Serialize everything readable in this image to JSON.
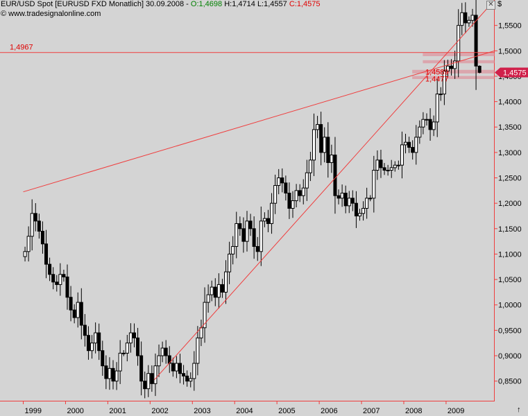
{
  "header": {
    "title": "EUR/USD Spot [EURUSD FXD  Monatlich] 30.09.2008 - ",
    "open": "O:1,4698",
    "high": "H:1,4714",
    "low": "L:1,4557",
    "close": "C:1,4575"
  },
  "copyright": "© www.tradesignalonline.com",
  "toolbar": {
    "close_glyph": "✕"
  },
  "axis": {
    "currency_symbol": "$",
    "scroll_glyph": "↑"
  },
  "colors": {
    "background": "#d4d4d4",
    "line": "#f03c3c",
    "candle_up": "#ffffff",
    "candle_down": "#000000"
  },
  "chart_data": {
    "type": "candlestick",
    "title": "EUR/USD Spot [EURUSD FXD  Monatlich] 30.09.2008",
    "ylim": [
      0.81,
      1.6
    ],
    "y_ticks": [
      "1,5500",
      "1,5000",
      "1,4500",
      "1,4000",
      "1,3500",
      "1,3000",
      "1,2500",
      "1,2000",
      "1,1500",
      "1,1000",
      "1,0500",
      "1,0000",
      "0,9500",
      "0,9000",
      "0,8500"
    ],
    "y_tick_values": [
      1.55,
      1.5,
      1.45,
      1.4,
      1.35,
      1.3,
      1.25,
      1.2,
      1.15,
      1.1,
      1.05,
      1.0,
      0.95,
      0.9,
      0.85
    ],
    "x_ticks": [
      "1999",
      "2000",
      "2001",
      "2002",
      "2003",
      "2004",
      "2005",
      "2006",
      "2007",
      "2008",
      "2009"
    ],
    "x_tick_years": [
      1999,
      2000,
      2001,
      2002,
      2003,
      2004,
      2005,
      2006,
      2007,
      2008,
      2009
    ],
    "x_range_years": [
      1998.45,
      2010.15
    ],
    "closes": [
      1.105,
      1.135,
      1.18,
      1.165,
      1.145,
      1.12,
      1.08,
      1.06,
      1.045,
      1.04,
      1.06,
      1.055,
      1.015,
      0.99,
      0.975,
      1.005,
      0.96,
      0.94,
      0.91,
      0.925,
      0.945,
      0.91,
      0.88,
      0.855,
      0.875,
      0.85,
      0.87,
      0.905,
      0.905,
      0.925,
      0.945,
      0.935,
      0.9,
      0.85,
      0.835,
      0.865,
      0.845,
      0.88,
      0.9,
      0.915,
      0.9,
      0.885,
      0.87,
      0.885,
      0.865,
      0.86,
      0.85,
      0.855,
      0.885,
      0.935,
      0.955,
      1.005,
      1.02,
      1.035,
      1.015,
      1.04,
      1.025,
      1.065,
      1.1,
      1.115,
      1.16,
      1.15,
      1.125,
      1.165,
      1.15,
      1.115,
      1.105,
      1.165,
      1.17,
      1.16,
      1.2,
      1.235,
      1.25,
      1.24,
      1.22,
      1.19,
      1.205,
      1.225,
      1.215,
      1.23,
      1.26,
      1.285,
      1.345,
      1.355,
      1.3,
      1.33,
      1.28,
      1.295,
      1.215,
      1.21,
      1.22,
      1.195,
      1.21,
      1.2,
      1.175,
      1.18,
      1.19,
      1.21,
      1.21,
      1.265,
      1.285,
      1.27,
      1.265,
      1.265,
      1.27,
      1.275,
      1.275,
      1.315,
      1.32,
      1.31,
      1.3,
      1.33,
      1.35,
      1.365,
      1.365,
      1.345,
      1.36,
      1.415,
      1.415,
      1.46,
      1.47,
      1.465,
      1.48,
      1.55,
      1.575,
      1.555,
      1.56,
      1.57,
      1.47,
      1.4575
    ],
    "lines": [
      {
        "name": "resistance",
        "from": [
          1999.0,
          1.2225
        ],
        "to": [
          2010.15,
          1.5
        ]
      },
      {
        "name": "support",
        "from": [
          2002.1,
          0.8525
        ],
        "to": [
          2010.15,
          1.6
        ]
      },
      {
        "name": "level",
        "from": [
          1998.45,
          1.4967
        ],
        "to": [
          2010.15,
          1.4967
        ]
      }
    ],
    "annotations": [
      {
        "label": "1,4967",
        "value": 1.4967,
        "color": "#e00000"
      },
      {
        "label": "1,4589",
        "value": 1.4589,
        "color": "#e00000"
      },
      {
        "label": "1,4477",
        "value": 1.4477,
        "color": "#e00000"
      }
    ],
    "bands": [
      {
        "from_year": 2008.2,
        "low": 1.4445,
        "high": 1.4505
      },
      {
        "from_year": 2008.2,
        "low": 1.4555,
        "high": 1.4625
      },
      {
        "from_year": 2008.45,
        "low": 1.4755,
        "high": 1.4815
      },
      {
        "from_year": 2008.45,
        "low": 1.4895,
        "high": 1.4955
      }
    ],
    "last_price_label": "1,4575",
    "last_price": 1.4575
  }
}
